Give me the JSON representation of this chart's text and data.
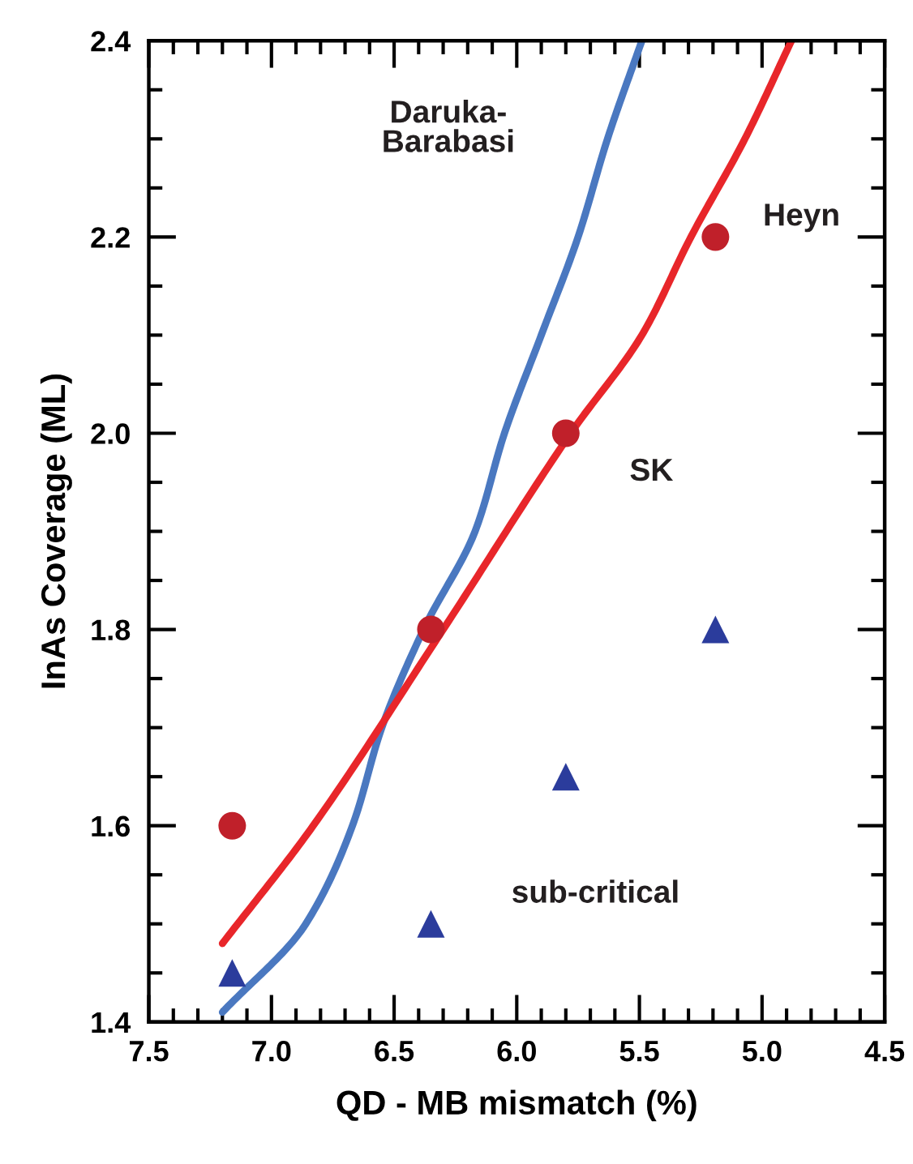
{
  "chart_data": {
    "type": "scatter",
    "xlabel": "QD - MB mismatch (%)",
    "ylabel": "InAs Coverage (ML)",
    "xlim": [
      7.5,
      4.5
    ],
    "ylim": [
      1.4,
      2.4
    ],
    "xticks": [
      {
        "value": 7.5,
        "label": "7.5"
      },
      {
        "value": 7.0,
        "label": "7.0"
      },
      {
        "value": 6.5,
        "label": "6.5"
      },
      {
        "value": 6.0,
        "label": "6.0"
      },
      {
        "value": 5.5,
        "label": "5.5"
      },
      {
        "value": 5.0,
        "label": "5.0"
      },
      {
        "value": 4.5,
        "label": "4.5"
      }
    ],
    "yticks": [
      1.4,
      1.6,
      1.8,
      {
        "value": 2.0,
        "label": "2.0"
      },
      2.2,
      2.4
    ],
    "grid": false,
    "legend": false,
    "series": [
      {
        "type": "line",
        "color": "#4a78c0",
        "marker": "none",
        "line_style": "solid",
        "x": [
          7.2,
          6.86,
          6.67,
          6.55,
          6.38,
          6.17,
          6.05,
          5.9,
          5.75,
          5.63,
          5.49
        ],
        "values": [
          1.41,
          1.5,
          1.6,
          1.7,
          1.8,
          1.9,
          2.0,
          2.1,
          2.2,
          2.3,
          2.4
        ]
      },
      {
        "type": "line",
        "color": "#e8262a",
        "marker": "none",
        "line_style": "solid",
        "x": [
          7.2,
          6.83,
          6.3,
          5.78,
          5.49,
          5.29,
          5.07,
          4.88
        ],
        "values": [
          1.48,
          1.6,
          1.8,
          2.0,
          2.1,
          2.2,
          2.3,
          2.4
        ]
      },
      {
        "color": "#c0202a",
        "marker": "circle",
        "x": [
          7.16,
          6.35,
          5.8,
          5.19
        ],
        "values": [
          1.6,
          1.8,
          2.0,
          2.2
        ]
      },
      {
        "color": "#2b3c9c",
        "marker": "triangle",
        "x": [
          7.16,
          6.35,
          5.8,
          5.19
        ],
        "values": [
          1.45,
          1.5,
          1.65,
          1.8
        ]
      }
    ],
    "annotations": [
      "Daruka-\nBarabasi",
      "Heyn",
      "SK",
      "sub-critical"
    ]
  }
}
